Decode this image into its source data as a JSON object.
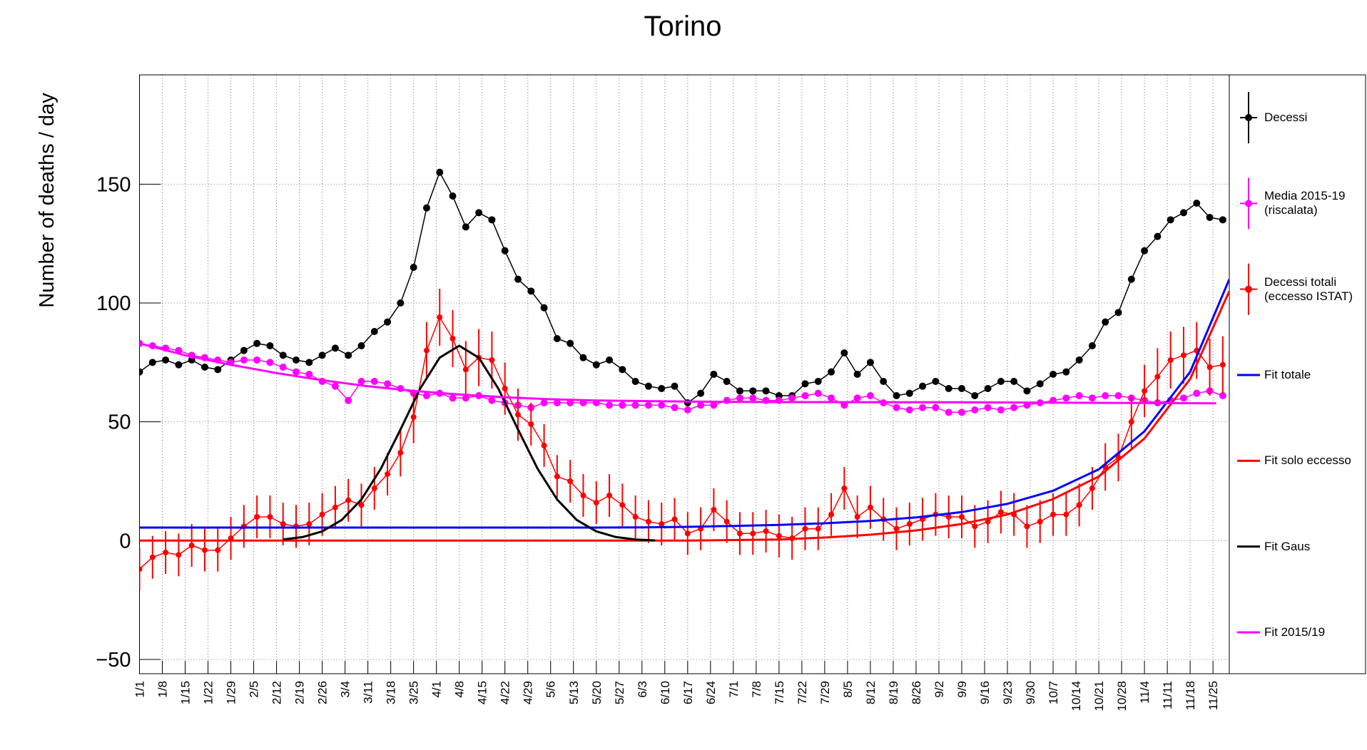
{
  "chart_data": {
    "type": "line",
    "title": "Torino",
    "y_label": "Number of deaths / day",
    "xlim": [
      0,
      334
    ],
    "ylim": [
      -56,
      196
    ],
    "grid": true,
    "legend": "right",
    "xticks": [
      {
        "value": 0,
        "label": "1/1"
      },
      {
        "value": 7,
        "label": "1/8"
      },
      {
        "value": 14,
        "label": "1/15"
      },
      {
        "value": 21,
        "label": "1/22"
      },
      {
        "value": 28,
        "label": "1/29"
      },
      {
        "value": 35,
        "label": "2/5"
      },
      {
        "value": 42,
        "label": "2/12"
      },
      {
        "value": 49,
        "label": "2/19"
      },
      {
        "value": 56,
        "label": "2/26"
      },
      {
        "value": 63,
        "label": "3/4"
      },
      {
        "value": 70,
        "label": "3/11"
      },
      {
        "value": 77,
        "label": "3/18"
      },
      {
        "value": 84,
        "label": "3/25"
      },
      {
        "value": 91,
        "label": "4/1"
      },
      {
        "value": 98,
        "label": "4/8"
      },
      {
        "value": 105,
        "label": "4/15"
      },
      {
        "value": 112,
        "label": "4/22"
      },
      {
        "value": 119,
        "label": "4/29"
      },
      {
        "value": 126,
        "label": "5/6"
      },
      {
        "value": 133,
        "label": "5/13"
      },
      {
        "value": 140,
        "label": "5/20"
      },
      {
        "value": 147,
        "label": "5/27"
      },
      {
        "value": 154,
        "label": "6/3"
      },
      {
        "value": 161,
        "label": "6/10"
      },
      {
        "value": 168,
        "label": "6/17"
      },
      {
        "value": 175,
        "label": "6/24"
      },
      {
        "value": 182,
        "label": "7/1"
      },
      {
        "value": 189,
        "label": "7/8"
      },
      {
        "value": 196,
        "label": "7/15"
      },
      {
        "value": 203,
        "label": "7/22"
      },
      {
        "value": 210,
        "label": "7/29"
      },
      {
        "value": 217,
        "label": "8/5"
      },
      {
        "value": 224,
        "label": "8/12"
      },
      {
        "value": 231,
        "label": "8/19"
      },
      {
        "value": 238,
        "label": "8/26"
      },
      {
        "value": 245,
        "label": "9/2"
      },
      {
        "value": 252,
        "label": "9/9"
      },
      {
        "value": 259,
        "label": "9/16"
      },
      {
        "value": 266,
        "label": "9/23"
      },
      {
        "value": 273,
        "label": "9/30"
      },
      {
        "value": 280,
        "label": "10/7"
      },
      {
        "value": 287,
        "label": "10/14"
      },
      {
        "value": 294,
        "label": "10/21"
      },
      {
        "value": 301,
        "label": "10/28"
      },
      {
        "value": 308,
        "label": "11/4"
      },
      {
        "value": 315,
        "label": "11/11"
      },
      {
        "value": 322,
        "label": "11/18"
      },
      {
        "value": 329,
        "label": "11/25"
      }
    ],
    "yticks": [
      {
        "value": -50,
        "label": "−50"
      },
      0,
      50,
      100,
      150
    ],
    "x": [
      0,
      4,
      8,
      12,
      16,
      20,
      24,
      28,
      32,
      36,
      40,
      44,
      48,
      52,
      56,
      60,
      64,
      68,
      72,
      76,
      80,
      84,
      88,
      92,
      96,
      100,
      104,
      108,
      112,
      116,
      120,
      124,
      128,
      132,
      136,
      140,
      144,
      148,
      152,
      156,
      160,
      164,
      168,
      172,
      176,
      180,
      184,
      188,
      192,
      196,
      200,
      204,
      208,
      212,
      216,
      220,
      224,
      228,
      232,
      236,
      240,
      244,
      248,
      252,
      256,
      260,
      264,
      268,
      272,
      276,
      280,
      284,
      288,
      292,
      296,
      300,
      304,
      308,
      312,
      316,
      320,
      324,
      328,
      332
    ],
    "series": [
      {
        "name": "Decessi",
        "color": "#000000",
        "style": "markers",
        "values": [
          71,
          75,
          76,
          74,
          76,
          73,
          72,
          76,
          80,
          83,
          82,
          78,
          76,
          75,
          78,
          81,
          78,
          82,
          88,
          92,
          100,
          115,
          140,
          155,
          145,
          132,
          138,
          135,
          122,
          110,
          105,
          98,
          85,
          83,
          77,
          74,
          76,
          72,
          67,
          65,
          64,
          65,
          58,
          62,
          70,
          67,
          63,
          63,
          63,
          61,
          61,
          66,
          67,
          71,
          79,
          70,
          75,
          67,
          61,
          62,
          65,
          67,
          64,
          64,
          61,
          64,
          67,
          67,
          63,
          66,
          70,
          71,
          76,
          82,
          92,
          96,
          110,
          122,
          128,
          135,
          138,
          142,
          136,
          135
        ]
      },
      {
        "name": "Media 2015-19 (riscalata)",
        "color": "#ff00ff",
        "style": "markers",
        "values": [
          83,
          82,
          81,
          80,
          78,
          77,
          76,
          75,
          76,
          76,
          75,
          73,
          71,
          70,
          67,
          65,
          59,
          67,
          67,
          66,
          64,
          62,
          61,
          62,
          60,
          60,
          61,
          59,
          58,
          57,
          56,
          58,
          58,
          58,
          58,
          58,
          57,
          57,
          57,
          57,
          57,
          56,
          55,
          57,
          57,
          59,
          60,
          60,
          59,
          59,
          60,
          61,
          62,
          60,
          57,
          60,
          61,
          58,
          56,
          55,
          56,
          56,
          54,
          54,
          55,
          56,
          55,
          56,
          57,
          58,
          59,
          60,
          61,
          60,
          61,
          61,
          60,
          59,
          58,
          59,
          60,
          62,
          63,
          61
        ]
      },
      {
        "name": "Decessi totali (eccesso ISTAT)",
        "color": "#ff0000",
        "style": "markers",
        "values": [
          -12,
          -7,
          -5,
          -6,
          -2,
          -4,
          -4,
          1,
          6,
          10,
          10,
          7,
          6,
          7,
          11,
          14,
          17,
          15,
          22,
          28,
          37,
          52,
          80,
          94,
          85,
          72,
          77,
          76,
          64,
          53,
          49,
          40,
          27,
          25,
          19,
          16,
          19,
          15,
          10,
          8,
          7,
          9,
          3,
          5,
          13,
          8,
          3,
          3,
          4,
          2,
          1,
          5,
          5,
          11,
          22,
          10,
          14,
          9,
          5,
          7,
          9,
          11,
          10,
          10,
          6,
          8,
          12,
          11,
          6,
          8,
          11,
          11,
          15,
          22,
          31,
          35,
          50,
          63,
          69,
          76,
          78,
          80,
          73,
          74
        ],
        "errors": [
          9,
          9,
          9,
          9,
          9,
          9,
          9,
          9,
          9,
          9,
          9,
          9,
          9,
          9,
          9,
          9,
          9,
          9,
          9,
          9,
          10,
          11,
          12,
          12,
          12,
          12,
          12,
          12,
          11,
          11,
          9,
          9,
          9,
          9,
          9,
          9,
          9,
          9,
          9,
          9,
          9,
          9,
          9,
          9,
          9,
          9,
          9,
          9,
          9,
          9,
          9,
          9,
          9,
          9,
          9,
          9,
          9,
          9,
          9,
          9,
          9,
          9,
          9,
          9,
          9,
          9,
          9,
          9,
          9,
          9,
          9,
          9,
          9,
          9,
          10,
          10,
          11,
          11,
          12,
          12,
          12,
          12,
          12,
          12
        ]
      },
      {
        "name": "Fit totale",
        "color": "#0000ff",
        "style": "line",
        "x": [
          0,
          28,
          56,
          84,
          112,
          140,
          154,
          168,
          182,
          196,
          210,
          224,
          238,
          252,
          266,
          280,
          294,
          308,
          322,
          334
        ],
        "values": [
          5.5,
          5.5,
          5.5,
          5.5,
          5.5,
          5.5,
          5.6,
          5.8,
          6.2,
          6.6,
          7.3,
          8.3,
          9.8,
          12,
          15.5,
          21,
          30,
          46,
          71,
          110
        ]
      },
      {
        "name": "Fit solo eccesso",
        "color": "#ff0000",
        "style": "line",
        "x": [
          0,
          56,
          112,
          168,
          196,
          210,
          224,
          238,
          252,
          266,
          280,
          294,
          308,
          322,
          334
        ],
        "values": [
          0,
          0,
          0,
          0,
          0.5,
          1.3,
          2.5,
          4.3,
          7,
          11,
          17.5,
          27,
          43,
          68,
          105
        ]
      },
      {
        "name": "Fit Gaus",
        "color": "#000000",
        "style": "line",
        "x": [
          44,
          50,
          56,
          62,
          68,
          74,
          80,
          86,
          92,
          98,
          104,
          110,
          116,
          122,
          128,
          134,
          140,
          146,
          152,
          158
        ],
        "values": [
          0.5,
          1.5,
          3.9,
          8.7,
          17.3,
          30.3,
          46.8,
          63.9,
          77,
          82,
          77,
          63.9,
          46.8,
          30.3,
          17.3,
          8.7,
          3.9,
          1.5,
          0.5,
          0.1
        ]
      },
      {
        "name": "Fit 2015/19",
        "color": "#ff00ff",
        "style": "line",
        "x": [
          0,
          14,
          28,
          42,
          56,
          70,
          84,
          98,
          112,
          126,
          140,
          168,
          196,
          252,
          330
        ],
        "values": [
          83,
          78,
          74,
          70.5,
          67.5,
          65,
          63,
          61.5,
          60.3,
          59.5,
          59,
          58.5,
          58.3,
          58.2,
          57.8
        ]
      }
    ]
  }
}
